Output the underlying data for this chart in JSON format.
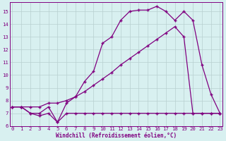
{
  "line1_x": [
    0,
    1,
    2,
    3,
    4,
    5,
    6,
    7,
    8,
    9,
    10,
    11,
    12,
    13,
    14,
    15,
    16,
    17,
    18,
    19,
    20,
    21,
    22,
    23
  ],
  "line1_y": [
    7.5,
    7.5,
    7.0,
    6.8,
    7.0,
    6.3,
    7.0,
    7.0,
    7.0,
    7.0,
    7.0,
    7.0,
    7.0,
    7.0,
    7.0,
    7.0,
    7.0,
    7.0,
    7.0,
    7.0,
    7.0,
    7.0,
    7.0,
    7.0
  ],
  "line2_x": [
    0,
    1,
    2,
    3,
    4,
    5,
    6,
    7,
    8,
    9,
    10,
    11,
    12,
    13,
    14,
    15,
    16,
    17,
    18,
    19,
    20,
    21,
    22,
    23
  ],
  "line2_y": [
    7.5,
    7.5,
    7.0,
    7.0,
    7.5,
    6.3,
    7.8,
    8.3,
    9.5,
    10.3,
    12.5,
    13.0,
    14.3,
    15.0,
    15.1,
    15.1,
    15.4,
    15.0,
    14.3,
    15.0,
    14.3,
    10.8,
    8.5,
    7.0
  ],
  "line3_x": [
    0,
    1,
    2,
    3,
    4,
    5,
    6,
    7,
    8,
    9,
    10,
    11,
    12,
    13,
    14,
    15,
    16,
    17,
    18,
    19,
    20,
    21,
    22,
    23
  ],
  "line3_y": [
    7.5,
    7.5,
    7.5,
    7.5,
    7.8,
    7.8,
    8.0,
    8.3,
    8.7,
    9.2,
    9.7,
    10.2,
    10.8,
    11.3,
    11.8,
    12.3,
    12.8,
    13.3,
    13.8,
    13.0,
    7.0,
    7.0,
    7.0,
    7.0
  ],
  "line_color": "#800080",
  "bg_color": "#d8f0f0",
  "grid_color": "#b8d0d0",
  "xlabel": "Windchill (Refroidissement éolien,°C)",
  "xlim": [
    0,
    23
  ],
  "ylim": [
    6,
    15.7
  ],
  "xticks": [
    0,
    1,
    2,
    3,
    4,
    5,
    6,
    7,
    8,
    9,
    10,
    11,
    12,
    13,
    14,
    15,
    16,
    17,
    18,
    19,
    20,
    21,
    22,
    23
  ],
  "yticks": [
    6,
    7,
    8,
    9,
    10,
    11,
    12,
    13,
    14,
    15
  ]
}
